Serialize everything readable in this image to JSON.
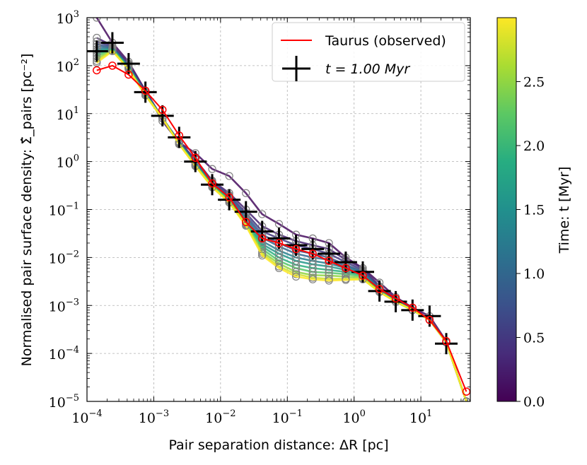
{
  "chart_data": {
    "type": "line",
    "title": "",
    "xlabel": "Pair separation distance: ΔR [pc]",
    "ylabel": "Normalised pair surface density: Σ̂_pairs [pc⁻²]",
    "xscale": "log",
    "yscale": "log",
    "xlim": [
      0.0001,
      55
    ],
    "ylim": [
      1e-05,
      1000
    ],
    "grid": true,
    "x_ticks": [
      {
        "mant": "10",
        "exp": "−4"
      },
      {
        "mant": "10",
        "exp": "−3"
      },
      {
        "mant": "10",
        "exp": "−2"
      },
      {
        "mant": "10",
        "exp": "−1"
      },
      {
        "mant": "10",
        "exp": "0"
      },
      {
        "mant": "10",
        "exp": "1"
      }
    ],
    "y_ticks": [
      {
        "mant": "10",
        "exp": "−5"
      },
      {
        "mant": "10",
        "exp": "−4"
      },
      {
        "mant": "10",
        "exp": "−3"
      },
      {
        "mant": "10",
        "exp": "−2"
      },
      {
        "mant": "10",
        "exp": "−1"
      },
      {
        "mant": "10",
        "exp": "0"
      },
      {
        "mant": "10",
        "exp": "1"
      },
      {
        "mant": "10",
        "exp": "2"
      },
      {
        "mant": "10",
        "exp": "3"
      }
    ],
    "legend": {
      "placement": "top-right",
      "entries": [
        {
          "label": "Taurus (observed)",
          "color": "#ff0000",
          "style": "line"
        },
        {
          "label": "t = 1.00 Myr",
          "color": "#000000",
          "style": "errorbar-cross"
        }
      ]
    },
    "observed": {
      "name": "Taurus (observed)",
      "color": "#ff0000",
      "x": [
        0.00014,
        0.00024,
        0.00042,
        0.00075,
        0.00135,
        0.0024,
        0.0042,
        0.0075,
        0.0135,
        0.024,
        0.042,
        0.075,
        0.135,
        0.24,
        0.42,
        0.75,
        1.35,
        2.4,
        4.2,
        7.5,
        13.5,
        24,
        48
      ],
      "y": [
        80,
        100,
        65,
        30,
        12,
        3.5,
        1.2,
        0.35,
        0.18,
        0.055,
        0.025,
        0.02,
        0.015,
        0.012,
        0.0085,
        0.006,
        0.0042,
        0.0022,
        0.0014,
        0.0009,
        0.0005,
        0.00018,
        1.6e-05
      ]
    },
    "reference_snapshot": {
      "name": "t = 1.00 Myr",
      "color": "#000000",
      "x": [
        0.00014,
        0.00024,
        0.00042,
        0.00075,
        0.00135,
        0.0024,
        0.0042,
        0.0075,
        0.0135,
        0.024,
        0.042,
        0.075,
        0.135,
        0.24,
        0.42,
        0.75,
        1.35,
        2.4,
        4.2,
        7.5,
        13.5,
        24
      ],
      "y": [
        200,
        300,
        110,
        28,
        9,
        3.2,
        1.0,
        0.33,
        0.16,
        0.09,
        0.035,
        0.025,
        0.018,
        0.015,
        0.012,
        0.008,
        0.005,
        0.002,
        0.0012,
        0.0008,
        0.0006,
        0.00016
      ]
    },
    "simulation": {
      "x": [
        0.00014,
        0.00024,
        0.00042,
        0.00075,
        0.00135,
        0.0024,
        0.0042,
        0.0075,
        0.0135,
        0.024,
        0.042,
        0.075,
        0.135,
        0.24,
        0.42,
        0.75,
        1.35,
        2.4,
        4.2,
        7.5,
        13.5,
        24,
        48
      ],
      "series": [
        {
          "t": 0.1,
          "y": [
            1000,
            300,
            120,
            30,
            7,
            2.5,
            1.5,
            0.7,
            0.5,
            0.22,
            0.08,
            0.05,
            0.03,
            0.025,
            0.02,
            0.01,
            0.006,
            0.003,
            0.0015,
            0.0009,
            0.0006,
            0.00018,
            1e-05
          ]
        },
        {
          "t": 0.3,
          "y": [
            380,
            260,
            110,
            30,
            8,
            2.6,
            1.1,
            0.4,
            0.22,
            0.1,
            0.045,
            0.03,
            0.022,
            0.018,
            0.015,
            0.009,
            0.006,
            0.0025,
            0.0014,
            0.0009,
            0.0005,
            0.00017,
            1e-05
          ]
        },
        {
          "t": 0.5,
          "y": [
            320,
            250,
            105,
            28,
            8,
            2.6,
            1.0,
            0.38,
            0.2,
            0.085,
            0.035,
            0.025,
            0.018,
            0.015,
            0.012,
            0.008,
            0.0055,
            0.0024,
            0.0013,
            0.0008,
            0.0005,
            0.00017,
            1e-05
          ]
        },
        {
          "t": 0.8,
          "y": [
            280,
            240,
            100,
            27,
            8,
            2.5,
            0.95,
            0.36,
            0.19,
            0.075,
            0.03,
            0.02,
            0.014,
            0.012,
            0.01,
            0.007,
            0.0052,
            0.0023,
            0.0013,
            0.0008,
            0.0005,
            0.00017,
            1e-05
          ]
        },
        {
          "t": 1.0,
          "y": [
            250,
            235,
            98,
            27,
            8,
            2.5,
            0.92,
            0.35,
            0.18,
            0.068,
            0.026,
            0.017,
            0.012,
            0.01,
            0.009,
            0.0065,
            0.005,
            0.0022,
            0.0012,
            0.0008,
            0.0005,
            0.00017,
            1e-05
          ]
        },
        {
          "t": 1.3,
          "y": [
            220,
            230,
            95,
            26,
            8,
            2.5,
            0.9,
            0.34,
            0.17,
            0.062,
            0.022,
            0.014,
            0.01,
            0.0085,
            0.0075,
            0.006,
            0.0048,
            0.0021,
            0.0012,
            0.0008,
            0.0005,
            0.00017,
            1e-05
          ]
        },
        {
          "t": 1.6,
          "y": [
            200,
            225,
            92,
            26,
            8,
            2.4,
            0.88,
            0.33,
            0.16,
            0.058,
            0.019,
            0.012,
            0.0085,
            0.0072,
            0.0065,
            0.0055,
            0.0045,
            0.002,
            0.0012,
            0.0008,
            0.0005,
            0.00017,
            1e-05
          ]
        },
        {
          "t": 1.9,
          "y": [
            180,
            220,
            90,
            25,
            8,
            2.4,
            0.86,
            0.32,
            0.16,
            0.055,
            0.017,
            0.01,
            0.007,
            0.006,
            0.0055,
            0.005,
            0.0042,
            0.002,
            0.0012,
            0.0008,
            0.0005,
            0.00017,
            1e-05
          ]
        },
        {
          "t": 2.2,
          "y": [
            160,
            215,
            88,
            25,
            8,
            2.4,
            0.85,
            0.31,
            0.15,
            0.052,
            0.015,
            0.0085,
            0.006,
            0.005,
            0.0048,
            0.0045,
            0.004,
            0.002,
            0.0012,
            0.0008,
            0.0005,
            0.00017,
            1e-05
          ]
        },
        {
          "t": 2.5,
          "y": [
            140,
            210,
            86,
            24,
            8,
            2.3,
            0.83,
            0.3,
            0.15,
            0.05,
            0.013,
            0.0075,
            0.005,
            0.0043,
            0.0042,
            0.004,
            0.0038,
            0.0019,
            0.0012,
            0.0008,
            0.0005,
            0.00017,
            1e-05
          ]
        },
        {
          "t": 2.8,
          "y": [
            125,
            205,
            85,
            24,
            8,
            2.3,
            0.82,
            0.3,
            0.14,
            0.048,
            0.012,
            0.0065,
            0.0045,
            0.0038,
            0.0036,
            0.0036,
            0.0036,
            0.0019,
            0.0012,
            0.0008,
            0.0005,
            0.00017,
            1e-05
          ]
        },
        {
          "t": 3.0,
          "y": [
            115,
            200,
            84,
            24,
            8,
            2.3,
            0.8,
            0.29,
            0.14,
            0.046,
            0.011,
            0.006,
            0.004,
            0.0035,
            0.0033,
            0.0034,
            0.0035,
            0.0019,
            0.0012,
            0.0008,
            0.0005,
            0.00017,
            1e-05
          ]
        }
      ]
    },
    "colorbar": {
      "label": "Time: t [Myr]",
      "range": [
        0.0,
        3.0
      ],
      "ticks": [
        "0.0",
        "0.5",
        "1.0",
        "1.5",
        "2.0",
        "2.5"
      ],
      "colormap": "viridis"
    }
  }
}
